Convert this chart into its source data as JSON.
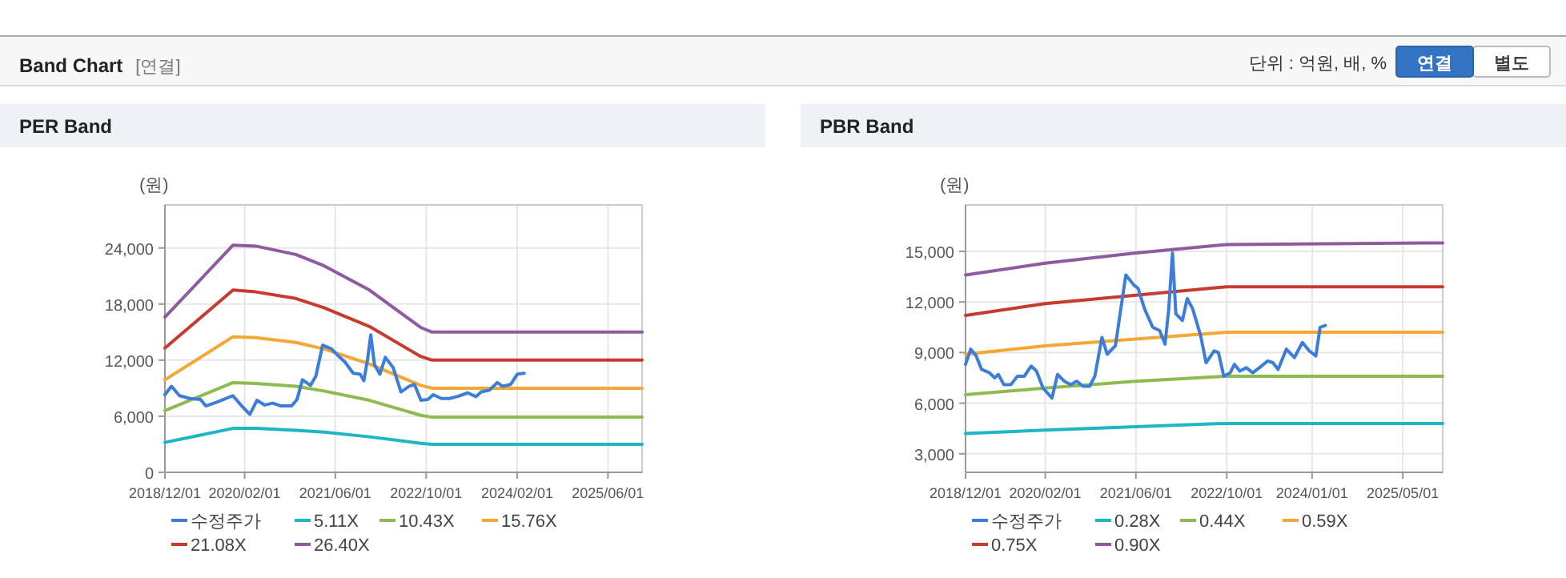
{
  "chart_data": [
    {
      "type": "line",
      "title": "PER Band",
      "ylabel": "(원)",
      "annotations": [
        "Band Chart",
        "[연결]",
        "단위 : 억원, 배, %",
        "연결",
        "별도"
      ],
      "xlim": [
        "2018-12-01",
        "2025-12-01"
      ],
      "xticks": [
        {
          "value": "2018-12-01",
          "label": "2018/12/01"
        },
        {
          "value": "2020-02-01",
          "label": "2020/02/01"
        },
        {
          "value": "2021-06-01",
          "label": "2021/06/01"
        },
        {
          "value": "2022-10-01",
          "label": "2022/10/01"
        },
        {
          "value": "2024-02-01",
          "label": "2024/02/01"
        },
        {
          "value": "2025-06-01",
          "label": "2025/06/01"
        }
      ],
      "ylim": [
        0,
        28600
      ],
      "yticks": [
        0,
        {
          "value": 6000,
          "label": "6,000"
        },
        {
          "value": 12000,
          "label": "12,000"
        },
        {
          "value": 18000,
          "label": "18,000"
        },
        {
          "value": 24000,
          "label": "24,000"
        }
      ],
      "grid": true,
      "legend": "bottom",
      "marker": "none",
      "line_style": "solid",
      "series": [
        {
          "name": "수정주가",
          "color": "#3b7dd8",
          "x": [
            "2018-12-01",
            "2019-01-05",
            "2019-02-17",
            "2019-04-14",
            "2019-06-10",
            "2019-07-08",
            "2019-09-05",
            "2019-11-30",
            "2020-01-12",
            "2020-02-29",
            "2020-04-07",
            "2020-05-19",
            "2020-07-01",
            "2020-08-14",
            "2020-10-10",
            "2020-11-08",
            "2020-12-07",
            "2021-01-19",
            "2021-02-17",
            "2021-03-25",
            "2021-05-12",
            "2021-06-25",
            "2021-07-23",
            "2021-09-05",
            "2021-10-12",
            "2021-11-01",
            "2021-11-21",
            "2021-12-08",
            "2021-12-28",
            "2022-01-26",
            "2022-02-24",
            "2022-04-07",
            "2022-05-19",
            "2022-07-01",
            "2022-07-30",
            "2022-09-03",
            "2022-10-10",
            "2022-11-08",
            "2022-12-21",
            "2023-02-03",
            "2023-03-16",
            "2023-05-12",
            "2023-06-24",
            "2023-07-23",
            "2023-09-05",
            "2023-10-17",
            "2023-11-15",
            "2023-12-28",
            "2024-02-01",
            "2024-03-09"
          ],
          "values": [
            8300,
            9200,
            8200,
            7900,
            7800,
            7100,
            7500,
            8200,
            7200,
            6200,
            7700,
            7200,
            7400,
            7100,
            7100,
            7800,
            9900,
            9300,
            10300,
            13600,
            13200,
            12300,
            11800,
            10600,
            10500,
            9800,
            12100,
            14700,
            11500,
            10500,
            12300,
            11200,
            8600,
            9200,
            9400,
            7700,
            7800,
            8300,
            7900,
            7900,
            8100,
            8500,
            8100,
            8600,
            8800,
            9600,
            9200,
            9400,
            10500,
            10600
          ]
        },
        {
          "name": "5.11X",
          "color": "#1db6c6",
          "x": [
            "2018-12-01",
            "2019-12-01",
            "2020-04-01",
            "2020-11-01",
            "2021-04-01",
            "2021-12-01",
            "2022-09-01",
            "2022-11-01",
            "2025-12-01"
          ],
          "values": [
            3200,
            4700,
            4700,
            4500,
            4300,
            3800,
            3100,
            3000,
            3000
          ]
        },
        {
          "name": "10.43X",
          "color": "#8cbb4f",
          "x": [
            "2018-12-01",
            "2019-12-01",
            "2020-04-01",
            "2020-11-01",
            "2021-04-01",
            "2021-12-01",
            "2022-09-01",
            "2022-11-01",
            "2025-12-01"
          ],
          "values": [
            6600,
            9600,
            9500,
            9200,
            8700,
            7700,
            6100,
            5900,
            5900
          ]
        },
        {
          "name": "15.76X",
          "color": "#f5a733",
          "x": [
            "2018-12-01",
            "2019-12-01",
            "2020-04-01",
            "2020-11-01",
            "2021-04-01",
            "2021-12-01",
            "2022-09-01",
            "2022-11-01",
            "2025-12-01"
          ],
          "values": [
            9900,
            14500,
            14400,
            13900,
            13200,
            11600,
            9300,
            9000,
            9000
          ]
        },
        {
          "name": "21.08X",
          "color": "#c93a2e",
          "x": [
            "2018-12-01",
            "2019-12-01",
            "2020-04-01",
            "2020-11-01",
            "2021-04-01",
            "2021-12-01",
            "2022-09-01",
            "2022-11-01",
            "2025-12-01"
          ],
          "values": [
            13300,
            19500,
            19300,
            18600,
            17600,
            15600,
            12400,
            12000,
            12000
          ]
        },
        {
          "name": "26.40X",
          "color": "#8e5aa0",
          "x": [
            "2018-12-01",
            "2019-12-01",
            "2020-04-01",
            "2020-11-01",
            "2021-04-01",
            "2021-12-01",
            "2022-09-01",
            "2022-11-01",
            "2025-12-01"
          ],
          "values": [
            16600,
            24300,
            24200,
            23300,
            22100,
            19500,
            15500,
            15000,
            15000
          ]
        }
      ]
    },
    {
      "type": "line",
      "title": "PBR Band",
      "ylabel": "(원)",
      "xlim": [
        "2018-12-01",
        "2025-12-01"
      ],
      "xticks": [
        {
          "value": "2018-12-01",
          "label": "2018/12/01"
        },
        {
          "value": "2020-02-01",
          "label": "2020/02/01"
        },
        {
          "value": "2021-06-01",
          "label": "2021/06/01"
        },
        {
          "value": "2022-10-01",
          "label": "2022/10/01"
        },
        {
          "value": "2024-01-01",
          "label": "2024/01/01"
        },
        {
          "value": "2025-05-01",
          "label": "2025/05/01"
        }
      ],
      "ylim": [
        1900,
        17750
      ],
      "yticks": [
        {
          "value": 3000,
          "label": "3,000"
        },
        {
          "value": 6000,
          "label": "6,000"
        },
        {
          "value": 9000,
          "label": "9,000"
        },
        {
          "value": 12000,
          "label": "12,000"
        },
        {
          "value": 15000,
          "label": "15,000"
        }
      ],
      "grid": true,
      "legend": "bottom",
      "marker": "none",
      "line_style": "solid",
      "series": [
        {
          "name": "수정주가",
          "color": "#3b7dd8",
          "x": [
            "2018-12-01",
            "2018-12-29",
            "2019-01-27",
            "2019-02-25",
            "2019-04-08",
            "2019-05-06",
            "2019-05-26",
            "2019-06-24",
            "2019-08-01",
            "2019-09-05",
            "2019-10-12",
            "2019-11-18",
            "2019-12-16",
            "2020-01-20",
            "2020-03-08",
            "2020-04-07",
            "2020-05-13",
            "2020-06-17",
            "2020-07-18",
            "2020-08-22",
            "2020-09-26",
            "2020-10-24",
            "2020-12-01",
            "2020-12-29",
            "2021-02-11",
            "2021-04-08",
            "2021-05-21",
            "2021-06-13",
            "2021-07-17",
            "2021-08-30",
            "2021-10-06",
            "2021-11-04",
            "2021-11-24",
            "2021-12-14",
            "2022-01-01",
            "2022-02-05",
            "2022-03-03",
            "2022-04-01",
            "2022-05-14",
            "2022-06-12",
            "2022-07-25",
            "2022-08-17",
            "2022-09-15",
            "2022-10-19",
            "2022-11-11",
            "2022-12-10",
            "2023-01-14",
            "2023-02-17",
            "2023-03-25",
            "2023-05-07",
            "2023-06-05",
            "2023-07-03",
            "2023-08-16",
            "2023-09-28",
            "2023-11-10",
            "2023-12-17",
            "2024-01-21",
            "2024-02-13",
            "2024-03-12"
          ],
          "values": [
            8300,
            9200,
            8800,
            8000,
            7800,
            7500,
            7700,
            7100,
            7100,
            7600,
            7600,
            8200,
            7900,
            6900,
            6300,
            7700,
            7300,
            7100,
            7300,
            7000,
            7000,
            7600,
            9900,
            8900,
            9400,
            13600,
            13000,
            12800,
            11600,
            10500,
            10300,
            9500,
            11600,
            14900,
            11300,
            10900,
            12200,
            11600,
            10000,
            8400,
            9100,
            9000,
            7600,
            7800,
            8300,
            7900,
            8100,
            7800,
            8100,
            8500,
            8400,
            8000,
            9200,
            8700,
            9600,
            9100,
            8800,
            10500,
            10600
          ]
        },
        {
          "name": "0.28X",
          "color": "#1db6c6",
          "x": [
            "2018-12-01",
            "2020-02-01",
            "2021-06-01",
            "2022-10-01",
            "2025-12-01"
          ],
          "values": [
            4200,
            4400,
            4600,
            4800,
            4800
          ]
        },
        {
          "name": "0.44X",
          "color": "#8cbb4f",
          "x": [
            "2018-12-01",
            "2020-02-01",
            "2021-06-01",
            "2022-10-01",
            "2025-12-01"
          ],
          "values": [
            6500,
            6900,
            7300,
            7600,
            7600
          ]
        },
        {
          "name": "0.59X",
          "color": "#f5a733",
          "x": [
            "2018-12-01",
            "2020-02-01",
            "2021-06-01",
            "2022-10-01",
            "2025-12-01"
          ],
          "values": [
            8900,
            9400,
            9800,
            10200,
            10200
          ]
        },
        {
          "name": "0.75X",
          "color": "#c93a2e",
          "x": [
            "2018-12-01",
            "2020-02-01",
            "2021-06-01",
            "2022-10-01",
            "2025-12-01"
          ],
          "values": [
            11200,
            11900,
            12400,
            12900,
            12900
          ]
        },
        {
          "name": "0.90X",
          "color": "#8e5aa0",
          "x": [
            "2018-12-01",
            "2020-02-01",
            "2021-06-01",
            "2022-10-01",
            "2025-12-01"
          ],
          "values": [
            13600,
            14300,
            14900,
            15400,
            15500
          ]
        }
      ]
    }
  ]
}
